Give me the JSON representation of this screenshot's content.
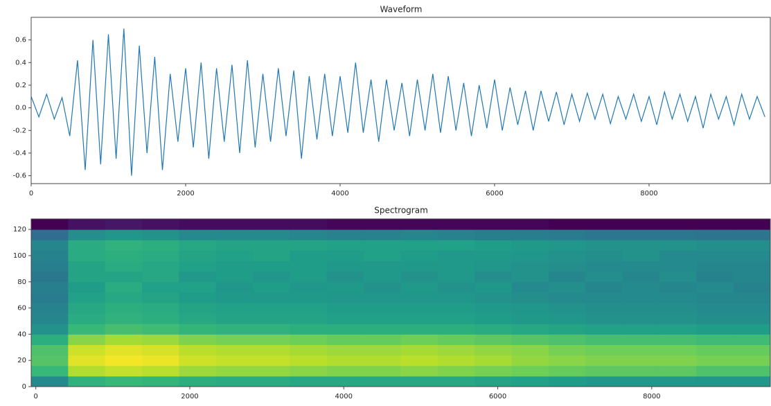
{
  "chart_data": [
    {
      "type": "line",
      "title": "Waveform",
      "color": "#1f77b4",
      "x": [
        0,
        100,
        200,
        300,
        400,
        500,
        600,
        700,
        800,
        900,
        1000,
        1100,
        1200,
        1300,
        1400,
        1500,
        1600,
        1700,
        1800,
        1900,
        2000,
        2100,
        2200,
        2300,
        2400,
        2500,
        2600,
        2700,
        2800,
        2900,
        3000,
        3100,
        3200,
        3300,
        3400,
        3500,
        3600,
        3700,
        3800,
        3900,
        4000,
        4100,
        4200,
        4300,
        4400,
        4500,
        4600,
        4700,
        4800,
        4900,
        5000,
        5100,
        5200,
        5300,
        5400,
        5500,
        5600,
        5700,
        5800,
        5900,
        6000,
        6100,
        6200,
        6300,
        6400,
        6500,
        6600,
        6700,
        6800,
        6900,
        7000,
        7100,
        7200,
        7300,
        7400,
        7500,
        7600,
        7700,
        7800,
        7900,
        8000,
        8100,
        8200,
        8300,
        8400,
        8500,
        8600,
        8700,
        8800,
        8900,
        9000,
        9100,
        9200,
        9300,
        9400,
        9500
      ],
      "values": [
        0.1,
        -0.08,
        0.12,
        -0.1,
        0.09,
        -0.25,
        0.42,
        -0.55,
        0.6,
        -0.5,
        0.65,
        -0.45,
        0.7,
        -0.6,
        0.55,
        -0.4,
        0.45,
        -0.55,
        0.3,
        -0.3,
        0.35,
        -0.35,
        0.4,
        -0.45,
        0.35,
        -0.3,
        0.38,
        -0.4,
        0.42,
        -0.35,
        0.3,
        -0.3,
        0.35,
        -0.25,
        0.33,
        -0.45,
        0.28,
        -0.28,
        0.3,
        -0.25,
        0.28,
        -0.22,
        0.4,
        -0.22,
        0.25,
        -0.3,
        0.25,
        -0.2,
        0.22,
        -0.25,
        0.25,
        -0.2,
        0.3,
        -0.22,
        0.28,
        -0.2,
        0.22,
        -0.25,
        0.2,
        -0.18,
        0.25,
        -0.2,
        0.18,
        -0.15,
        0.15,
        -0.2,
        0.15,
        -0.12,
        0.14,
        -0.15,
        0.12,
        -0.12,
        0.13,
        -0.1,
        0.12,
        -0.14,
        0.1,
        -0.1,
        0.12,
        -0.12,
        0.1,
        -0.15,
        0.14,
        -0.1,
        0.12,
        -0.12,
        0.1,
        -0.18,
        0.12,
        -0.1,
        0.1,
        -0.15,
        0.12,
        -0.1,
        0.1,
        -0.08
      ],
      "xlim": [
        0,
        9570
      ],
      "xticks": [
        0,
        2000,
        4000,
        6000,
        8000
      ],
      "ylim": [
        -0.67,
        0.8
      ],
      "yticks": [
        -0.6,
        -0.4,
        -0.2,
        {
          "value": 0,
          "label": "0.0"
        },
        0.2,
        0.4,
        0.6
      ]
    },
    {
      "type": "heatmap",
      "title": "Spectrogram",
      "colormap": "viridis",
      "clim": [
        0.18,
        0.85
      ],
      "xlim": [
        -60,
        9540
      ],
      "xticks": [
        0,
        2000,
        4000,
        6000,
        8000
      ],
      "ylim": [
        0,
        128
      ],
      "yticks": [
        0,
        20,
        40,
        60,
        80,
        100,
        120
      ],
      "values": [
        [
          0.5,
          0.61,
          0.63,
          0.62,
          0.6,
          0.59,
          0.59,
          0.58,
          0.58,
          0.58,
          0.58,
          0.58,
          0.57,
          0.56,
          0.55,
          0.54,
          0.54,
          0.54,
          0.53,
          0.53
        ],
        [
          0.63,
          0.77,
          0.79,
          0.78,
          0.75,
          0.74,
          0.74,
          0.73,
          0.72,
          0.72,
          0.73,
          0.72,
          0.71,
          0.7,
          0.69,
          0.68,
          0.68,
          0.68,
          0.66,
          0.66
        ],
        [
          0.67,
          0.82,
          0.84,
          0.83,
          0.8,
          0.79,
          0.79,
          0.78,
          0.77,
          0.77,
          0.78,
          0.77,
          0.76,
          0.74,
          0.73,
          0.72,
          0.72,
          0.72,
          0.71,
          0.71
        ],
        [
          0.66,
          0.8,
          0.82,
          0.81,
          0.78,
          0.77,
          0.77,
          0.76,
          0.75,
          0.75,
          0.76,
          0.75,
          0.74,
          0.73,
          0.71,
          0.7,
          0.7,
          0.7,
          0.69,
          0.69
        ],
        [
          0.6,
          0.73,
          0.76,
          0.75,
          0.72,
          0.71,
          0.71,
          0.7,
          0.69,
          0.69,
          0.7,
          0.69,
          0.68,
          0.67,
          0.66,
          0.65,
          0.65,
          0.65,
          0.64,
          0.64
        ],
        [
          0.52,
          0.63,
          0.65,
          0.64,
          0.62,
          0.61,
          0.61,
          0.6,
          0.6,
          0.6,
          0.6,
          0.6,
          0.59,
          0.58,
          0.57,
          0.56,
          0.56,
          0.56,
          0.55,
          0.55
        ],
        [
          0.49,
          0.59,
          0.61,
          0.6,
          0.58,
          0.57,
          0.57,
          0.57,
          0.56,
          0.56,
          0.56,
          0.56,
          0.55,
          0.54,
          0.53,
          0.52,
          0.52,
          0.52,
          0.51,
          0.51
        ],
        [
          0.48,
          0.58,
          0.6,
          0.59,
          0.57,
          0.56,
          0.56,
          0.56,
          0.55,
          0.55,
          0.55,
          0.55,
          0.54,
          0.53,
          0.52,
          0.51,
          0.51,
          0.51,
          0.5,
          0.5
        ],
        [
          0.46,
          0.56,
          0.58,
          0.57,
          0.55,
          0.54,
          0.54,
          0.54,
          0.53,
          0.53,
          0.53,
          0.53,
          0.52,
          0.51,
          0.5,
          0.5,
          0.5,
          0.5,
          0.49,
          0.49
        ],
        [
          0.47,
          0.55,
          0.59,
          0.56,
          0.56,
          0.53,
          0.55,
          0.53,
          0.54,
          0.52,
          0.54,
          0.52,
          0.53,
          0.5,
          0.51,
          0.49,
          0.5,
          0.49,
          0.5,
          0.48
        ],
        [
          0.45,
          0.57,
          0.57,
          0.58,
          0.54,
          0.55,
          0.53,
          0.55,
          0.52,
          0.54,
          0.52,
          0.54,
          0.51,
          0.52,
          0.49,
          0.51,
          0.49,
          0.51,
          0.48,
          0.49
        ],
        [
          0.47,
          0.57,
          0.59,
          0.58,
          0.56,
          0.55,
          0.55,
          0.55,
          0.54,
          0.54,
          0.54,
          0.54,
          0.53,
          0.52,
          0.51,
          0.5,
          0.5,
          0.5,
          0.49,
          0.49
        ],
        [
          0.48,
          0.59,
          0.6,
          0.59,
          0.57,
          0.56,
          0.57,
          0.55,
          0.55,
          0.56,
          0.55,
          0.54,
          0.54,
          0.53,
          0.52,
          0.51,
          0.52,
          0.5,
          0.5,
          0.5
        ],
        [
          0.49,
          0.59,
          0.61,
          0.6,
          0.58,
          0.57,
          0.57,
          0.57,
          0.56,
          0.56,
          0.56,
          0.56,
          0.55,
          0.54,
          0.53,
          0.52,
          0.52,
          0.52,
          0.51,
          0.51
        ],
        [
          0.42,
          0.51,
          0.53,
          0.52,
          0.5,
          0.5,
          0.5,
          0.49,
          0.48,
          0.48,
          0.49,
          0.48,
          0.47,
          0.47,
          0.46,
          0.45,
          0.45,
          0.45,
          0.44,
          0.44
        ],
        [
          0.18,
          0.21,
          0.22,
          0.21,
          0.2,
          0.2,
          0.2,
          0.2,
          0.19,
          0.19,
          0.19,
          0.19,
          0.19,
          0.19,
          0.18,
          0.18,
          0.18,
          0.18,
          0.18,
          0.18
        ]
      ]
    }
  ]
}
